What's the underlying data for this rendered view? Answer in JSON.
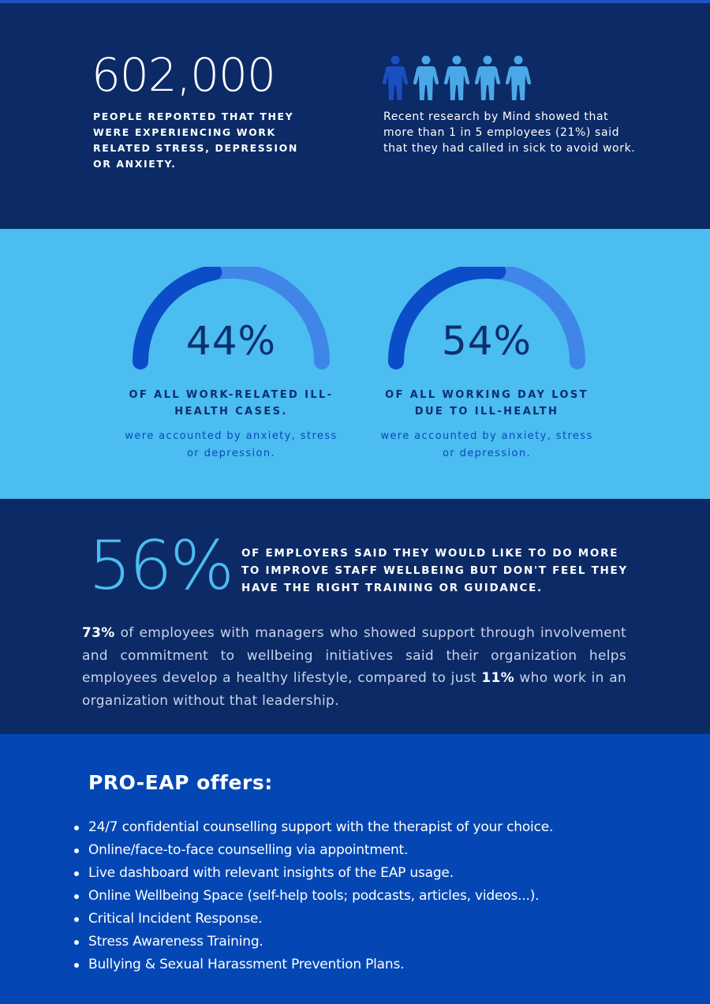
{
  "section1": {
    "big_number": "602,000",
    "reported_text": "PEOPLE REPORTED THAT THEY WERE EXPERIENCING WORK RELATED STRESS, DEPRESSION OR ANXIETY.",
    "mind_text": "Recent research by Mind showed that more than 1 in 5 employees (21%) said that they had called in sick to avoid work.",
    "people_icons": {
      "icon": "person-icon",
      "highlighted": 1,
      "total": 5,
      "highlight_color": "#1a4fc1",
      "other_color": "#4aa8e8"
    }
  },
  "section2": {
    "gauges": [
      {
        "value": "44%",
        "caption": "OF ALL WORK-RELATED ILL-HEALTH CASES.",
        "sub": "were accounted by anxiety, stress or depression.",
        "fill_fraction": 0.44
      },
      {
        "value": "54%",
        "caption": "OF ALL WORKING DAY LOST DUE TO ILL-HEALTH",
        "sub": "were accounted by anxiety, stress or depression.",
        "fill_fraction": 0.54
      }
    ],
    "colors": {
      "gauge_fill": "#0b4cc8",
      "gauge_track": "#3f86e8"
    }
  },
  "section3": {
    "big_percent": "56%",
    "employers_text": "OF EMPLOYERS SAID THEY WOULD LIKE TO DO MORE TO IMPROVE STAFF WELLBEING BUT DON'T FEEL THEY HAVE THE RIGHT TRAINING OR GUIDANCE.",
    "paragraph": {
      "stat1": "73%",
      "text1": " of employees with managers who showed support through involvement and commitment to wellbeing initiatives said their organization helps employees develop a healthy lifestyle, compared to just ",
      "stat2": "11%",
      "text2": " who work in an organization without that leadership."
    }
  },
  "section4": {
    "title": "PRO-EAP offers:",
    "items": [
      "24/7 confidential counselling support with the therapist of your choice.",
      "Online/face-to-face counselling via appointment.",
      "Live dashboard with relevant insights of the EAP usage.",
      "Online Wellbeing Space (self-help tools; podcasts, articles, videos...).",
      "Critical Incident Response.",
      "Stress Awareness Training.",
      "Bullying & Sexual Harassment Prevention Plans."
    ]
  }
}
